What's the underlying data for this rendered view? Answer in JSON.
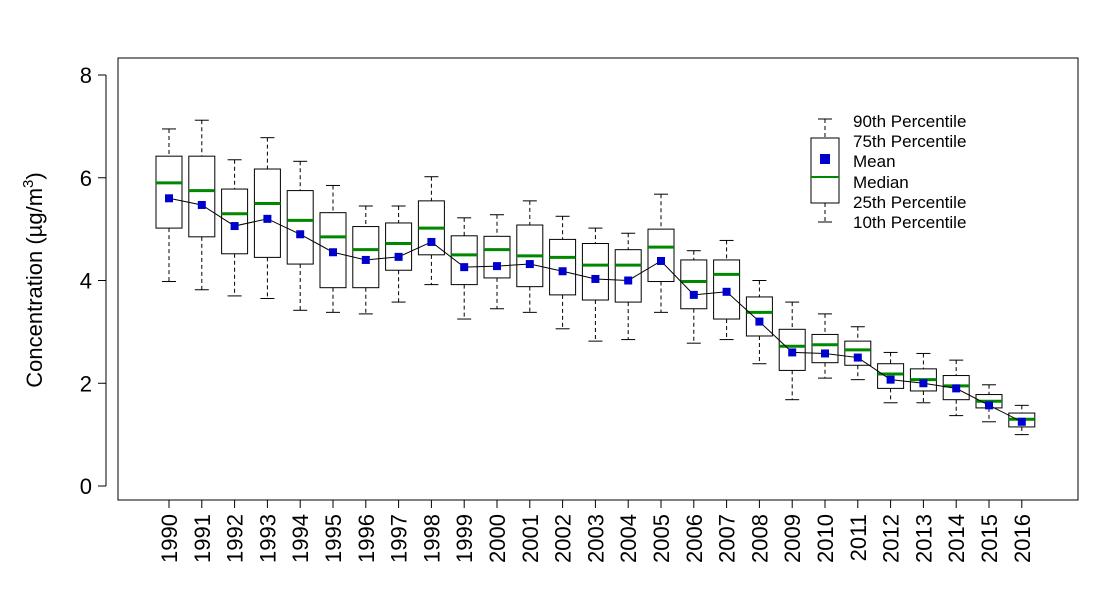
{
  "chart_data": {
    "type": "boxplot",
    "ylabel": {
      "prefix": "Concentration (",
      "unit_mu": "µ",
      "unit_g": "g/m",
      "unit_exp": "3",
      "suffix": ")"
    },
    "ylim": [
      0,
      8
    ],
    "yticks": [
      "0",
      "2",
      "4",
      "6",
      "8"
    ],
    "categories": [
      "1990",
      "1991",
      "1992",
      "1993",
      "1994",
      "1995",
      "1996",
      "1997",
      "1998",
      "1999",
      "2000",
      "2001",
      "2002",
      "2003",
      "2004",
      "2005",
      "2006",
      "2007",
      "2008",
      "2009",
      "2010",
      "2011",
      "2012",
      "2013",
      "2014",
      "2015",
      "2016"
    ],
    "p10": [
      3.98,
      3.82,
      3.7,
      3.65,
      3.42,
      3.38,
      3.35,
      3.58,
      3.92,
      3.25,
      3.45,
      3.38,
      3.06,
      2.82,
      2.85,
      3.38,
      2.78,
      2.85,
      2.38,
      1.68,
      2.1,
      2.07,
      1.62,
      1.62,
      1.37,
      1.25,
      1.0
    ],
    "p25": [
      5.02,
      4.85,
      4.52,
      4.45,
      4.32,
      3.86,
      3.86,
      4.2,
      4.5,
      3.92,
      4.05,
      3.88,
      3.72,
      3.62,
      3.58,
      3.98,
      3.45,
      3.25,
      2.92,
      2.25,
      2.4,
      2.35,
      1.9,
      1.85,
      1.68,
      1.52,
      1.15
    ],
    "median": [
      5.9,
      5.75,
      5.3,
      5.5,
      5.17,
      4.85,
      4.6,
      4.72,
      5.02,
      4.5,
      4.6,
      4.48,
      4.45,
      4.3,
      4.3,
      4.65,
      3.98,
      4.12,
      3.38,
      2.72,
      2.75,
      2.65,
      2.18,
      2.07,
      1.95,
      1.65,
      1.3
    ],
    "mean": [
      5.6,
      5.47,
      5.06,
      5.2,
      4.9,
      4.55,
      4.4,
      4.46,
      4.75,
      4.26,
      4.28,
      4.32,
      4.18,
      4.03,
      4.0,
      4.38,
      3.72,
      3.78,
      3.2,
      2.6,
      2.58,
      2.5,
      2.07,
      2.0,
      1.9,
      1.57,
      1.25
    ],
    "p75": [
      6.42,
      6.42,
      5.78,
      6.17,
      5.75,
      5.32,
      5.05,
      5.12,
      5.55,
      4.87,
      4.86,
      5.08,
      4.8,
      4.72,
      4.6,
      5.0,
      4.4,
      4.4,
      3.68,
      3.05,
      2.95,
      2.82,
      2.38,
      2.28,
      2.15,
      1.78,
      1.42
    ],
    "p90": [
      6.95,
      7.12,
      6.35,
      6.78,
      6.32,
      5.85,
      5.45,
      5.45,
      6.02,
      5.22,
      5.28,
      5.55,
      5.25,
      5.02,
      4.92,
      5.68,
      4.58,
      4.78,
      4.0,
      3.58,
      3.35,
      3.1,
      2.6,
      2.58,
      2.45,
      1.97,
      1.57
    ],
    "legend": [
      "90th Percentile",
      "75th Percentile",
      "Mean",
      "Median",
      "25th Percentile",
      "10th Percentile"
    ],
    "legend_position": "top-right"
  },
  "colors": {
    "median": "#008800",
    "mean": "#0000cc",
    "box": "#000000",
    "whisker": "#000000"
  }
}
